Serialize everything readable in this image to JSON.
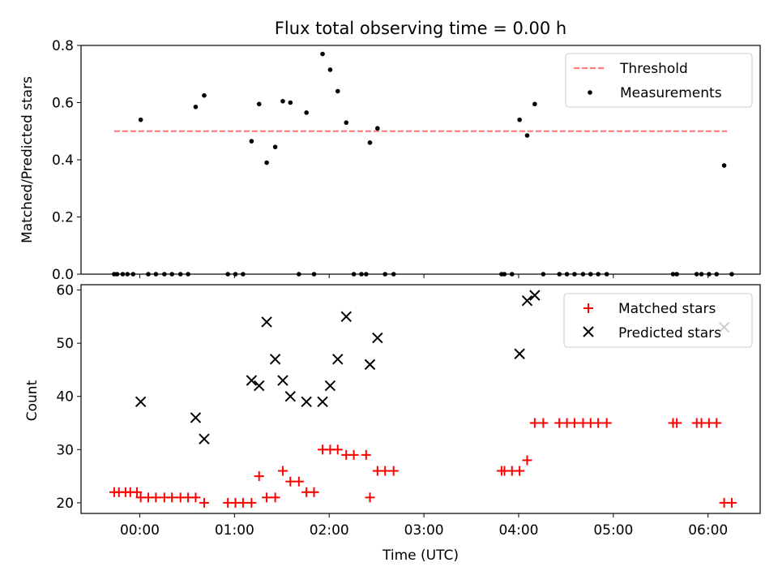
{
  "title": "Flux total observing time = 0.00 h",
  "chart_data": [
    {
      "type": "scatter",
      "ylabel": "Matched/Predicted stars",
      "ylim": [
        0,
        0.8
      ],
      "yticks": [
        "0.0",
        "0.2",
        "0.4",
        "0.6",
        "0.8"
      ],
      "xlim": [
        -0.62,
        6.55
      ],
      "legend_position": "top-right",
      "threshold": {
        "name": "Threshold",
        "value": 0.5,
        "x_range": [
          -0.27,
          6.2
        ],
        "color": "#ff7f7f"
      },
      "series": [
        {
          "name": "Measurements",
          "color": "#000000",
          "x": [
            -0.27,
            -0.24,
            -0.18,
            -0.13,
            -0.07,
            0.01,
            0.09,
            0.17,
            0.26,
            0.34,
            0.43,
            0.51,
            0.59,
            0.68,
            0.93,
            1.01,
            1.09,
            1.18,
            1.26,
            1.34,
            1.43,
            1.51,
            1.59,
            1.68,
            1.76,
            1.84,
            1.93,
            2.01,
            2.09,
            2.18,
            2.26,
            2.34,
            2.39,
            2.43,
            2.51,
            2.59,
            2.68,
            3.82,
            3.85,
            3.93,
            4.01,
            4.09,
            4.17,
            4.26,
            4.43,
            4.51,
            4.59,
            4.68,
            4.76,
            4.84,
            4.93,
            5.63,
            5.67,
            5.88,
            5.93,
            6.01,
            6.09,
            6.17,
            6.25
          ],
          "y": [
            0.0,
            0.0,
            0.0,
            0.0,
            0.0,
            0.54,
            0.0,
            0.0,
            0.0,
            0.0,
            0.0,
            0.0,
            0.585,
            0.625,
            0.0,
            0.0,
            0.0,
            0.465,
            0.595,
            0.39,
            0.445,
            0.605,
            0.6,
            0.0,
            0.565,
            0.0,
            0.77,
            0.715,
            0.64,
            0.53,
            0.0,
            0.0,
            0.0,
            0.46,
            0.51,
            0.0,
            0.0,
            0.0,
            0.0,
            0.0,
            0.54,
            0.485,
            0.595,
            0.0,
            0.0,
            0.0,
            0.0,
            0.0,
            0.0,
            0.0,
            0.0,
            0.0,
            0.0,
            0.0,
            0.0,
            0.0,
            0.0,
            0.38,
            0.0
          ]
        }
      ]
    },
    {
      "type": "scatter",
      "xlabel": "Time (UTC)",
      "ylabel": "Count",
      "ylim": [
        18,
        61
      ],
      "yticks": [
        "20",
        "30",
        "40",
        "50",
        "60"
      ],
      "xlim": [
        -0.62,
        6.55
      ],
      "xticks": [
        {
          "value": 0,
          "label": "00:00"
        },
        {
          "value": 1,
          "label": "01:00"
        },
        {
          "value": 2,
          "label": "02:00"
        },
        {
          "value": 3,
          "label": "03:00"
        },
        {
          "value": 4,
          "label": "04:00"
        },
        {
          "value": 5,
          "label": "05:00"
        },
        {
          "value": 6,
          "label": "06:00"
        }
      ],
      "legend_position": "top-right",
      "series": [
        {
          "name": "Matched stars",
          "marker": "plus",
          "color": "#ff0000",
          "x": [
            -0.27,
            -0.22,
            -0.15,
            -0.1,
            -0.03,
            0.01,
            0.09,
            0.17,
            0.26,
            0.34,
            0.43,
            0.51,
            0.59,
            0.68,
            0.93,
            1.01,
            1.09,
            1.18,
            1.26,
            1.34,
            1.43,
            1.51,
            1.59,
            1.68,
            1.76,
            1.84,
            1.93,
            2.01,
            2.09,
            2.18,
            2.26,
            2.39,
            2.43,
            2.51,
            2.59,
            2.68,
            3.82,
            3.85,
            3.93,
            4.01,
            4.09,
            4.17,
            4.26,
            4.43,
            4.51,
            4.59,
            4.68,
            4.76,
            4.84,
            4.93,
            5.63,
            5.67,
            5.88,
            5.93,
            6.01,
            6.09,
            6.17,
            6.25
          ],
          "y": [
            22,
            22,
            22,
            22,
            22,
            21,
            21,
            21,
            21,
            21,
            21,
            21,
            21,
            20,
            20,
            20,
            20,
            20,
            25,
            21,
            21,
            26,
            24,
            24,
            22,
            22,
            30,
            30,
            30,
            29,
            29,
            29,
            21,
            26,
            26,
            26,
            26,
            26,
            26,
            26,
            28,
            35,
            35,
            35,
            35,
            35,
            35,
            35,
            35,
            35,
            35,
            35,
            35,
            35,
            35,
            35,
            20,
            20
          ]
        },
        {
          "name": "Predicted stars",
          "marker": "x",
          "color": "#000000",
          "x": [
            0.01,
            0.59,
            0.68,
            1.18,
            1.26,
            1.34,
            1.43,
            1.51,
            1.59,
            1.76,
            1.93,
            2.01,
            2.09,
            2.18,
            2.43,
            2.51,
            4.01,
            4.09,
            4.17,
            6.17
          ],
          "y": [
            39,
            36,
            32,
            43,
            42,
            54,
            47,
            43,
            40,
            39,
            39,
            42,
            47,
            55,
            46,
            51,
            48,
            58,
            59,
            53
          ]
        }
      ]
    }
  ]
}
